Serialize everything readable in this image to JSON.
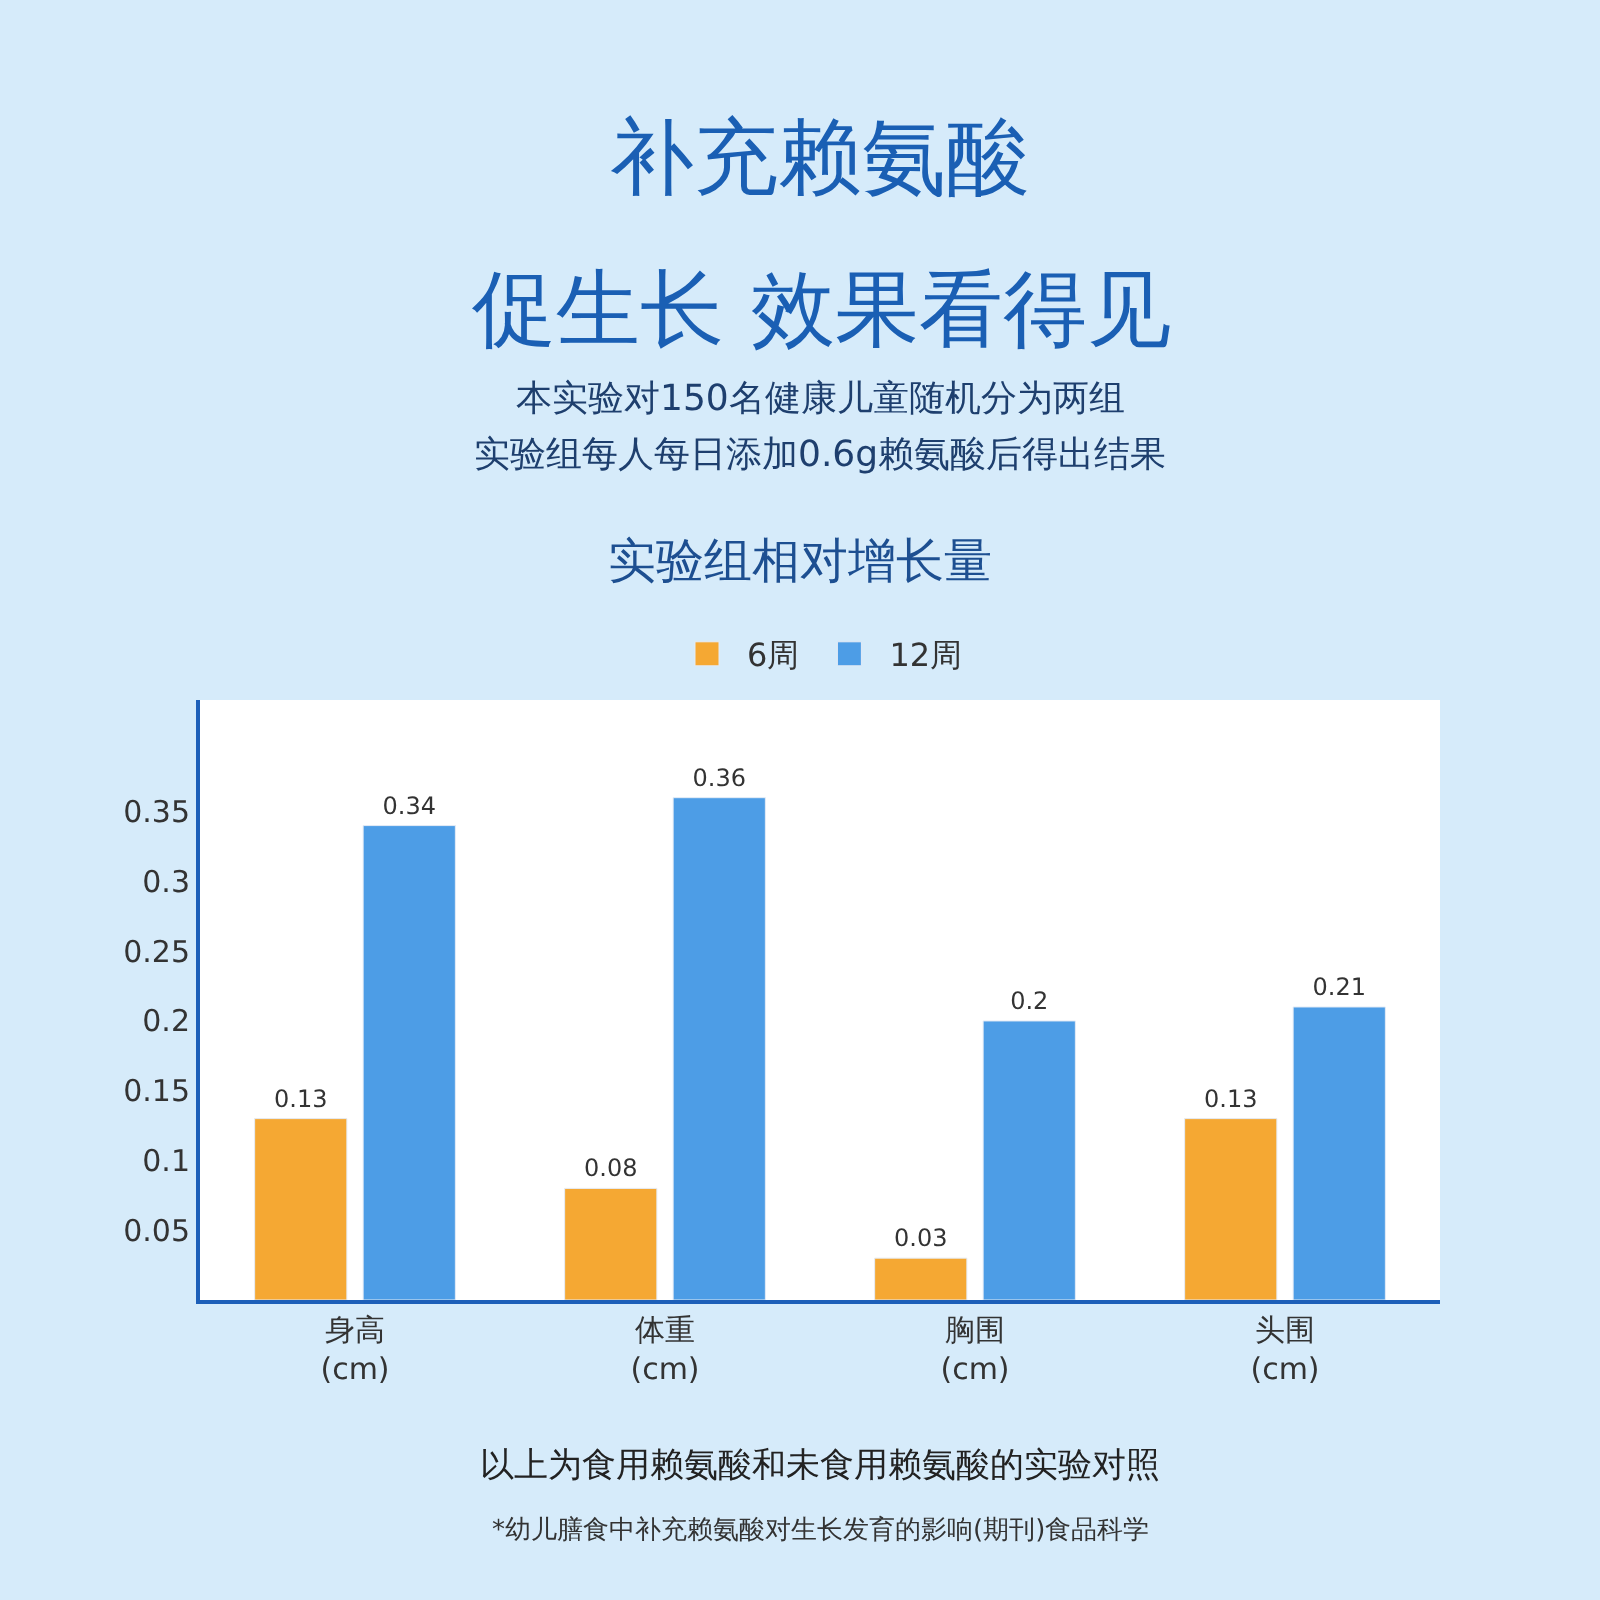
{
  "chart_data": {
    "type": "bar",
    "title": "实验组相对增长量",
    "annotations": [
      "补充赖氨酸",
      "促生长 效果看得见",
      "本实验对150名健康儿童随机分为两组",
      "实验组每人每日添加0.6g赖氨酸后得出结果",
      "以上为食用赖氨酸和未食用赖氨酸的实验对照",
      "*幼儿膳食中补充赖氨酸对生长发育的影响(期刊)食品科学"
    ],
    "categories": [
      "身高\n(cm)",
      "体重\n(cm)",
      "胸围\n(cm)",
      "头围\n(cm)"
    ],
    "series": [
      {
        "name": "6周",
        "color": "#f5a833",
        "values": [
          0.13,
          0.08,
          0.03,
          0.13
        ]
      },
      {
        "name": "12周",
        "color": "#4d9de6",
        "values": [
          0.34,
          0.36,
          0.2,
          0.21
        ]
      }
    ],
    "ylim": [
      0,
      0.43
    ],
    "yticks": [
      0.05,
      0.1,
      0.15,
      0.2,
      0.25,
      0.3,
      0.35
    ],
    "data_labels": true,
    "legend": "top"
  }
}
